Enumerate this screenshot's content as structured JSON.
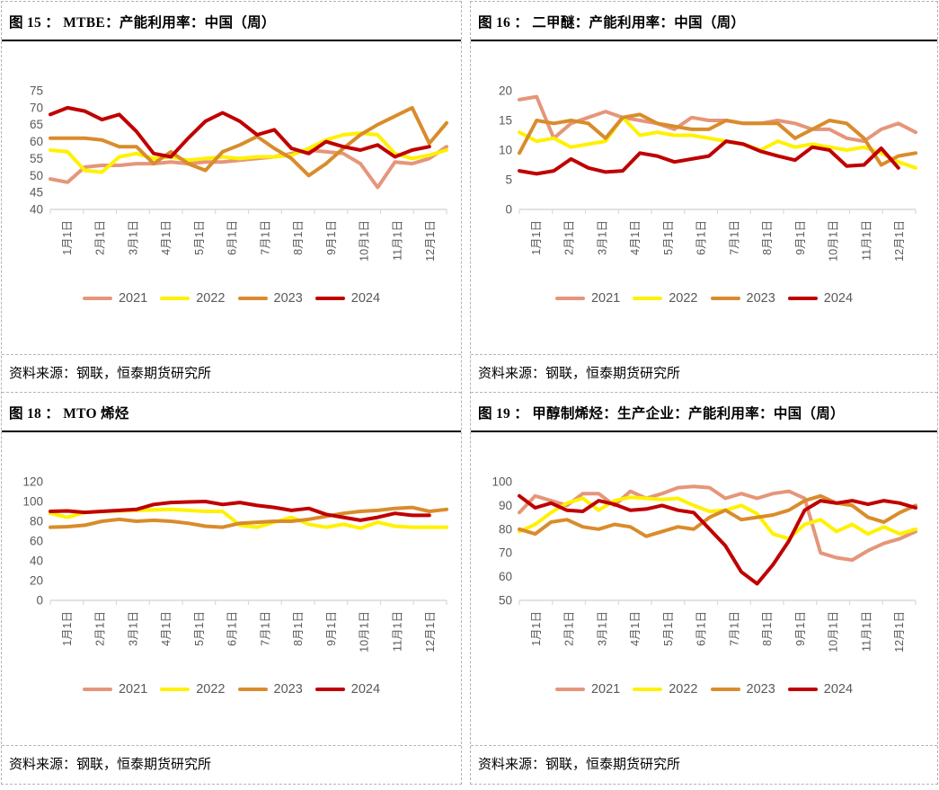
{
  "page": {
    "background": "#ffffff",
    "grid_border_color": "#b3b3b3",
    "axis_text_color": "#595959",
    "axis_line_color": "#d9d9d9"
  },
  "charts": [
    {
      "id": "fig15",
      "title": "图 15 ： MTBE：产能利用率：中国（周）",
      "source": "资料来源：钢联，恒泰期货研究所"
    },
    {
      "id": "fig16",
      "title": "图 16 ： 二甲醚：产能利用率：中国（周）",
      "source": "资料来源：钢联，恒泰期货研究所"
    },
    {
      "id": "fig18",
      "title": "图 18 ： MTO 烯烃",
      "source": "资料来源：钢联，恒泰期货研究所"
    },
    {
      "id": "fig19",
      "title": "图 19 ： 甲醇制烯烃：生产企业：产能利用率：中国（周）",
      "source": "资料来源：钢联，恒泰期货研究所"
    }
  ],
  "chart_data": [
    {
      "type": "line",
      "title": "图 15 ： MTBE：产能利用率：中国（周）",
      "categories": [
        "1月1日",
        "2月1日",
        "3月1日",
        "4月1日",
        "5月1日",
        "6月1日",
        "7月1日",
        "8月1日",
        "9月1日",
        "10月1日",
        "11月1日",
        "12月1日"
      ],
      "ylim": [
        40,
        75
      ],
      "yticks": [
        40,
        45,
        50,
        55,
        60,
        65,
        70,
        75
      ],
      "grid": false,
      "legend_position": "bottom",
      "series": [
        {
          "name": "2021",
          "color": "#E5967A",
          "values": [
            49,
            48,
            52.5,
            53,
            53,
            53.5,
            53.5,
            54,
            53.5,
            54,
            54,
            54.5,
            55,
            55.5,
            56.5,
            57.5,
            57,
            56.5,
            53.5,
            46.5,
            54,
            53.5,
            55,
            58.5
          ]
        },
        {
          "name": "2022",
          "color": "#FFF100",
          "values": [
            57.5,
            57,
            51.5,
            51,
            55.5,
            56.5,
            55,
            55.5,
            54.5,
            55,
            55.5,
            55,
            55.5,
            55.5,
            56,
            58,
            60.5,
            62,
            62.5,
            62,
            56.5,
            55,
            56,
            57.5
          ]
        },
        {
          "name": "2023",
          "color": "#D98C2B",
          "values": [
            61,
            61,
            61,
            60.5,
            58.5,
            58.5,
            53.5,
            57,
            53.5,
            51.5,
            57,
            59,
            61.5,
            58,
            55,
            50,
            53.5,
            58,
            62,
            65,
            67.5,
            70,
            59.5,
            65.5
          ]
        },
        {
          "name": "2024",
          "color": "#C00000",
          "values": [
            68,
            70,
            69,
            66.5,
            68,
            63,
            56.5,
            55.5,
            61,
            66,
            68.5,
            66,
            62,
            63.5,
            58,
            56.5,
            60,
            58.5,
            57.5,
            59,
            55.5,
            57.5,
            58.5,
            null
          ]
        }
      ]
    },
    {
      "type": "line",
      "title": "图 16 ： 二甲醚：产能利用率：中国（周）",
      "categories": [
        "1月1日",
        "2月1日",
        "3月1日",
        "4月1日",
        "5月1日",
        "6月1日",
        "7月1日",
        "8月1日",
        "9月1日",
        "10月1日",
        "11月1日",
        "12月1日"
      ],
      "ylim": [
        0,
        20
      ],
      "yticks": [
        0,
        5,
        10,
        15,
        20
      ],
      "grid": false,
      "legend_position": "bottom",
      "series": [
        {
          "name": "2021",
          "color": "#E5967A",
          "values": [
            18.5,
            19,
            12,
            14.5,
            15.5,
            16.5,
            15.5,
            15,
            14.5,
            13.5,
            15.5,
            15,
            15,
            14.5,
            14.5,
            15,
            14.5,
            13.5,
            13.5,
            12,
            11.5,
            13.5,
            14.5,
            13
          ]
        },
        {
          "name": "2022",
          "color": "#FFF100",
          "values": [
            13,
            11.5,
            12,
            10.5,
            11,
            11.5,
            15.5,
            12.5,
            13,
            12.5,
            12.5,
            12,
            11.5,
            11,
            10,
            11.5,
            10.5,
            11,
            10.5,
            10,
            10.5,
            9.5,
            8,
            7
          ]
        },
        {
          "name": "2023",
          "color": "#D98C2B",
          "values": [
            9.5,
            15,
            14.5,
            15,
            14.5,
            12,
            15.5,
            16,
            14.5,
            14,
            13.5,
            13.5,
            15,
            14.5,
            14.5,
            14.5,
            12,
            13.5,
            15,
            14.5,
            12,
            7.5,
            9,
            9.5
          ]
        },
        {
          "name": "2024",
          "color": "#C00000",
          "values": [
            6.5,
            6,
            6.5,
            8.5,
            7,
            6.3,
            6.5,
            9.5,
            9,
            8,
            8.5,
            9,
            11.5,
            11,
            9.8,
            9,
            8.3,
            10.5,
            10,
            7.3,
            7.5,
            10.3,
            7,
            null
          ]
        }
      ]
    },
    {
      "type": "line",
      "title": "图 18 ： MTO 烯烃",
      "categories": [
        "1月1日",
        "2月1日",
        "3月1日",
        "4月1日",
        "5月1日",
        "6月1日",
        "7月1日",
        "8月1日",
        "9月1日",
        "10月1日",
        "11月1日",
        "12月1日"
      ],
      "ylim": [
        0,
        120
      ],
      "yticks": [
        0,
        20,
        40,
        60,
        80,
        100,
        120
      ],
      "grid": false,
      "legend_position": "bottom",
      "series": [
        {
          "name": "2021",
          "color": "#E5967A",
          "values": []
        },
        {
          "name": "2022",
          "color": "#FFF100",
          "values": [
            88,
            84,
            89,
            90,
            90.5,
            91,
            91.5,
            92,
            91,
            90,
            90,
            76,
            74,
            79,
            84,
            77,
            74,
            77,
            73,
            79,
            75,
            74,
            74,
            74
          ]
        },
        {
          "name": "2023",
          "color": "#D98C2B",
          "values": [
            74,
            74.5,
            76,
            80,
            82,
            80,
            81,
            80,
            78,
            75,
            74,
            78,
            79,
            80,
            80,
            82,
            85,
            88,
            90,
            91,
            93,
            94,
            90,
            92
          ]
        },
        {
          "name": "2024",
          "color": "#C00000",
          "values": [
            90,
            90.5,
            89,
            90,
            91,
            92,
            97,
            99,
            99.5,
            100,
            97,
            99,
            96,
            94,
            91,
            93,
            87,
            84,
            81,
            84,
            88,
            86,
            86,
            null
          ]
        }
      ]
    },
    {
      "type": "line",
      "title": "图 19 ： 甲醇制烯烃：生产企业：产能利用率：中国（周）",
      "categories": [
        "1月1日",
        "2月1日",
        "3月1日",
        "4月1日",
        "5月1日",
        "6月1日",
        "7月1日",
        "8月1日",
        "9月1日",
        "10月1日",
        "11月1日",
        "12月1日"
      ],
      "ylim": [
        50,
        100
      ],
      "yticks": [
        50,
        60,
        70,
        80,
        90,
        100
      ],
      "grid": false,
      "legend_position": "bottom",
      "series": [
        {
          "name": "2021",
          "color": "#E5967A",
          "values": [
            87,
            94,
            92,
            90,
            95,
            95,
            90,
            96,
            93,
            95,
            97.5,
            98,
            97.5,
            93,
            95,
            93,
            95,
            96,
            93,
            70,
            68,
            67,
            71,
            74,
            76,
            79
          ]
        },
        {
          "name": "2022",
          "color": "#FFF100",
          "values": [
            79,
            82,
            87,
            91,
            93,
            88,
            92,
            93.5,
            93,
            92.5,
            93,
            90,
            87.5,
            88,
            90,
            86.5,
            78,
            76,
            82,
            84,
            79,
            82,
            78,
            81,
            78,
            80
          ]
        },
        {
          "name": "2023",
          "color": "#D98C2B",
          "values": [
            80,
            78,
            83,
            84,
            81,
            80,
            82,
            81,
            77,
            79,
            81,
            80,
            85,
            88,
            84,
            85,
            86,
            88,
            92,
            94,
            91,
            90,
            85,
            83,
            87,
            90
          ]
        },
        {
          "name": "2024",
          "color": "#C00000",
          "values": [
            94,
            89,
            91,
            88,
            87.5,
            92,
            90.5,
            88,
            88.5,
            90,
            88,
            87,
            80,
            73,
            62,
            57,
            65,
            75,
            88,
            92,
            91,
            92,
            90.5,
            92,
            91,
            89
          ]
        }
      ]
    }
  ]
}
